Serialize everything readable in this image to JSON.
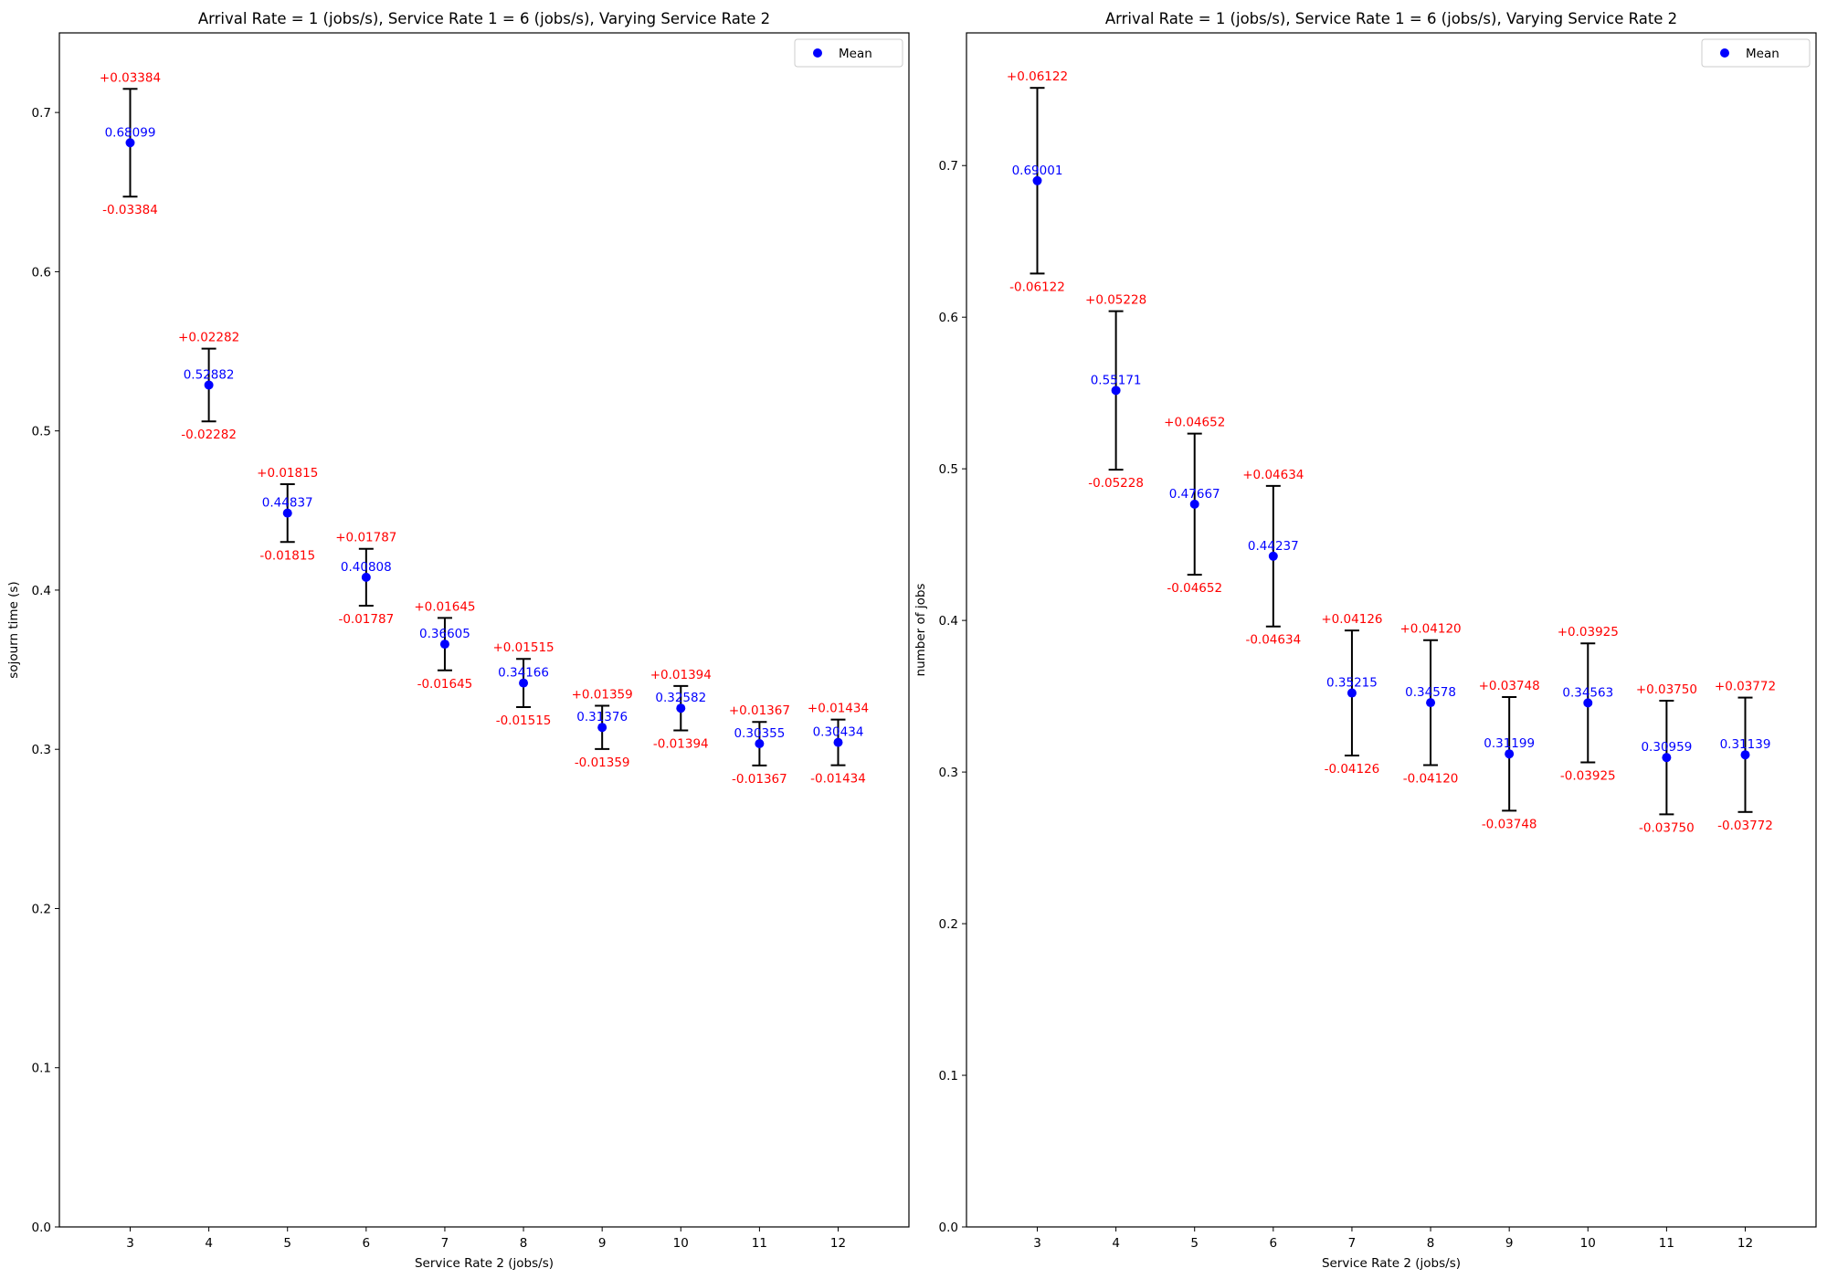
{
  "chart_data": [
    {
      "type": "scatter",
      "title": "Arrival Rate = 1 (jobs/s), Service Rate 1 = 6 (jobs/s), Varying Service Rate 2",
      "xlabel": "Service Rate 2 (jobs/s)",
      "ylabel": "sojourn time (s)",
      "xlim": [
        2.1,
        12.9
      ],
      "ylim": [
        0.0,
        0.75
      ],
      "xticks": [
        3,
        4,
        5,
        6,
        7,
        8,
        9,
        10,
        11,
        12
      ],
      "xtick_labels": [
        "3",
        "4",
        "5",
        "6",
        "7",
        "8",
        "9",
        "10",
        "11",
        "12"
      ],
      "yticks": [
        0.0,
        0.1,
        0.2,
        0.3,
        0.4,
        0.5,
        0.6,
        0.7
      ],
      "ytick_labels": [
        "0.0",
        "0.1",
        "0.2",
        "0.3",
        "0.4",
        "0.5",
        "0.6",
        "0.7"
      ],
      "grid": false,
      "legend": {
        "position": "top-right",
        "entries": [
          "Mean"
        ]
      },
      "x": [
        3,
        4,
        5,
        6,
        7,
        8,
        9,
        10,
        11,
        12
      ],
      "mean": [
        0.68099,
        0.52882,
        0.44837,
        0.40808,
        0.36605,
        0.34166,
        0.31376,
        0.32582,
        0.30355,
        0.30434
      ],
      "err": [
        0.03384,
        0.02282,
        0.01815,
        0.01787,
        0.01645,
        0.01515,
        0.01359,
        0.01394,
        0.01367,
        0.01434
      ],
      "mean_labels": [
        "0.68099",
        "0.52882",
        "0.44837",
        "0.40808",
        "0.36605",
        "0.34166",
        "0.31376",
        "0.32582",
        "0.30355",
        "0.30434"
      ],
      "plus_labels": [
        "+0.03384",
        "+0.02282",
        "+0.01815",
        "+0.01787",
        "+0.01645",
        "+0.01515",
        "+0.01359",
        "+0.01394",
        "+0.01367",
        "+0.01434"
      ],
      "minus_labels": [
        "-0.03384",
        "-0.02282",
        "-0.01815",
        "-0.01787",
        "-0.01645",
        "-0.01515",
        "-0.01359",
        "-0.01394",
        "-0.01367",
        "-0.01434"
      ]
    },
    {
      "type": "scatter",
      "title": "Arrival Rate = 1 (jobs/s), Service Rate 1 = 6 (jobs/s), Varying Service Rate 2",
      "xlabel": "Service Rate 2 (jobs/s)",
      "ylabel": "number of jobs",
      "xlim": [
        2.1,
        12.9
      ],
      "ylim": [
        0.0,
        0.7875
      ],
      "xticks": [
        3,
        4,
        5,
        6,
        7,
        8,
        9,
        10,
        11,
        12
      ],
      "xtick_labels": [
        "3",
        "4",
        "5",
        "6",
        "7",
        "8",
        "9",
        "10",
        "11",
        "12"
      ],
      "yticks": [
        0.0,
        0.1,
        0.2,
        0.3,
        0.4,
        0.5,
        0.6,
        0.7
      ],
      "ytick_labels": [
        "0.0",
        "0.1",
        "0.2",
        "0.3",
        "0.4",
        "0.5",
        "0.6",
        "0.7"
      ],
      "grid": false,
      "legend": {
        "position": "top-right",
        "entries": [
          "Mean"
        ]
      },
      "x": [
        3,
        4,
        5,
        6,
        7,
        8,
        9,
        10,
        11,
        12
      ],
      "mean": [
        0.69001,
        0.55171,
        0.47667,
        0.44237,
        0.35215,
        0.34578,
        0.31199,
        0.34563,
        0.30959,
        0.31139
      ],
      "err": [
        0.06122,
        0.05228,
        0.04652,
        0.04634,
        0.04126,
        0.0412,
        0.03748,
        0.03925,
        0.0375,
        0.03772
      ],
      "mean_labels": [
        "0.69001",
        "0.55171",
        "0.47667",
        "0.44237",
        "0.35215",
        "0.34578",
        "0.31199",
        "0.34563",
        "0.30959",
        "0.31139"
      ],
      "plus_labels": [
        "+0.06122",
        "+0.05228",
        "+0.04652",
        "+0.04634",
        "+0.04126",
        "+0.04120",
        "+0.03748",
        "+0.03925",
        "+0.03750",
        "+0.03772"
      ],
      "minus_labels": [
        "-0.06122",
        "-0.05228",
        "-0.04652",
        "-0.04634",
        "-0.04126",
        "-0.04120",
        "-0.03748",
        "-0.03925",
        "-0.03750",
        "-0.03772"
      ]
    }
  ],
  "colors": {
    "mean_marker": "#0000ff",
    "mean_label": "#0000ff",
    "error_label": "#ff0000",
    "error_bar": "#000000",
    "axes": "#000000"
  }
}
